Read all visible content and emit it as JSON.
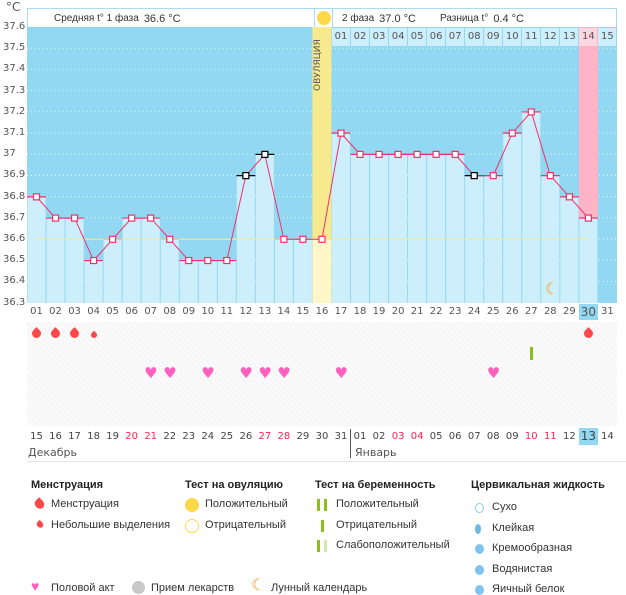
{
  "header": {
    "phase1": "Средняя t° 1 фаза",
    "phase1_value": "36.6 °C",
    "phase2": "2 фаза",
    "phase2_value": "37.0 °C",
    "diff": "Разница t°",
    "diff_value": "0.4 °C",
    "ovulation_label": "ОВУЛЯЦИЯ",
    "unit": "°C"
  },
  "chart_data": {
    "type": "line",
    "ylim": [
      36.3,
      37.6
    ],
    "yticks": [
      "37.6",
      "37.5",
      "37.4",
      "37.3",
      "37.2",
      "37.1",
      "37",
      "36.9",
      "36.8",
      "36.7",
      "36.6",
      "36.5",
      "36.4",
      "36.3"
    ],
    "cycle_days": [
      "01",
      "02",
      "03",
      "04",
      "05",
      "06",
      "07",
      "08",
      "09",
      "10",
      "11",
      "12",
      "13",
      "14",
      "15",
      "16",
      "17",
      "18",
      "19",
      "20",
      "21",
      "22",
      "23",
      "24",
      "25",
      "26",
      "27",
      "28",
      "29",
      "30",
      "31"
    ],
    "temps": [
      36.8,
      36.7,
      36.7,
      36.5,
      36.6,
      36.7,
      36.7,
      36.6,
      36.5,
      36.5,
      36.5,
      36.9,
      37.0,
      36.6,
      36.6,
      36.6,
      37.1,
      37.0,
      37.0,
      37.0,
      37.0,
      37.0,
      37.0,
      36.9,
      36.9,
      37.1,
      37.2,
      36.9,
      36.8,
      36.7,
      null
    ],
    "questionable_days": [
      12,
      13,
      24
    ],
    "coverline": 36.6,
    "ovulation_day": 16,
    "current_day": 30,
    "luteal_days": [
      "01",
      "02",
      "03",
      "04",
      "05",
      "06",
      "07",
      "08",
      "09",
      "10",
      "11",
      "12",
      "13",
      "14",
      "15"
    ],
    "dates": [
      "15",
      "16",
      "17",
      "18",
      "19",
      "20",
      "21",
      "22",
      "23",
      "24",
      "25",
      "26",
      "27",
      "28",
      "29",
      "30",
      "31",
      "01",
      "02",
      "03",
      "04",
      "05",
      "06",
      "07",
      "08",
      "09",
      "10",
      "11",
      "12",
      "13",
      "14"
    ],
    "weekend_dates_idx": [
      5,
      6,
      12,
      13,
      19,
      20,
      26,
      27
    ],
    "months": [
      "Декабрь",
      "Январь"
    ],
    "menstruation_full": [
      1,
      2,
      3,
      30
    ],
    "menstruation_light": [
      4
    ],
    "intercourse": [
      7,
      8,
      10,
      12,
      13,
      14,
      17,
      25
    ],
    "pregnancy_test_negative": [
      27
    ],
    "moon": [
      28
    ]
  },
  "colors": {
    "bg": "#92d8f2",
    "bar": "#cdeefb",
    "line": "#f0306a",
    "ovulation": "#f7e98e",
    "today": "#ffb3c6",
    "heart": "#ff5fbf",
    "blood": "#ff4747",
    "weekend": "#ff2255",
    "test": "#8cbf1a",
    "moon": "#f59a1a"
  },
  "legend": {
    "menstruation": {
      "title": "Менструация",
      "items": [
        "Менструация",
        "Небольшие выделения"
      ]
    },
    "ovulation_test": {
      "title": "Тест на овуляцию",
      "items": [
        "Положительный",
        "Отрицательный"
      ]
    },
    "pregnancy_test": {
      "title": "Тест на беременность",
      "items": [
        "Положительный",
        "Отрицательный",
        "Слабоположительный"
      ]
    },
    "cervical": {
      "title": "Цервикальная жидкость",
      "items": [
        "Сухо",
        "Клейкая",
        "Кремообразная",
        "Водянистая",
        "Яичный белок"
      ]
    },
    "other": [
      "Половой акт",
      "Прием лекарств",
      "Лунный календарь"
    ]
  }
}
